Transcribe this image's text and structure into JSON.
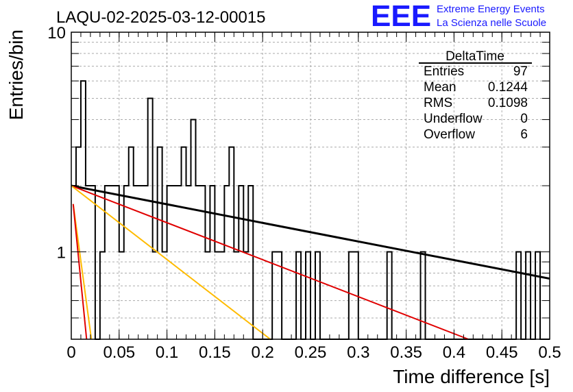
{
  "chart_data": {
    "type": "histogram",
    "title": "LAQU-02-2025-03-12-00015",
    "xlabel": "Time difference [s]",
    "ylabel": "Entries/bin",
    "xlim": [
      0,
      0.5
    ],
    "ylim": [
      0.4,
      10
    ],
    "ylog": true,
    "grid": true,
    "x_ticks": [
      "0",
      "0.05",
      "0.1",
      "0.15",
      "0.2",
      "0.25",
      "0.3",
      "0.35",
      "0.4",
      "0.45",
      "0.5"
    ],
    "y_ticks": [
      "1",
      "10"
    ],
    "bin_width": 0.005,
    "bin_counts": [
      2,
      3,
      6,
      2,
      2,
      0,
      1,
      2,
      2,
      2,
      1,
      2,
      3,
      2,
      2,
      2,
      5,
      1,
      3,
      1,
      2,
      2,
      2,
      3,
      2,
      4,
      2,
      2,
      1,
      2,
      1,
      1,
      2,
      3,
      1,
      2,
      1,
      2,
      0,
      0,
      0,
      0,
      1,
      1,
      0,
      0,
      0,
      1,
      0,
      1,
      0,
      1,
      0,
      0,
      0,
      0,
      0,
      0,
      1,
      1,
      0,
      0,
      0,
      0,
      0,
      0,
      1,
      0,
      0,
      0,
      0,
      0,
      0,
      1,
      0,
      0,
      0,
      0,
      0,
      0,
      0,
      0,
      0,
      0,
      0,
      0,
      0,
      0,
      0,
      0,
      0,
      0,
      0,
      1,
      0,
      1,
      0,
      1,
      0,
      0
    ],
    "fit_lines": [
      {
        "color": "#000000",
        "points": [
          [
            0,
            2.0
          ],
          [
            0.5,
            0.755
          ]
        ]
      },
      {
        "color": "#e00000",
        "points": [
          [
            0,
            2.0
          ],
          [
            0.415,
            0.4
          ]
        ]
      },
      {
        "color": "#ffbb00",
        "points": [
          [
            0,
            2.0
          ],
          [
            0.208,
            0.4
          ]
        ]
      },
      {
        "color": "#ffbb00",
        "points": [
          [
            0.002,
            1.65
          ],
          [
            0.021,
            0.4
          ]
        ]
      },
      {
        "color": "#e00000",
        "points": [
          [
            0.002,
            1.65
          ],
          [
            0.016,
            0.4
          ]
        ]
      }
    ],
    "stats": {
      "title": "DeltaTime",
      "rows": [
        {
          "label": "Entries",
          "value": "97"
        },
        {
          "label": "Mean",
          "value": "0.1244"
        },
        {
          "label": "RMS",
          "value": "0.1098"
        },
        {
          "label": "Underflow",
          "value": "0"
        },
        {
          "label": "Overflow",
          "value": "6"
        }
      ]
    },
    "logo": {
      "text": "EEE",
      "line1": "Extreme Energy Events",
      "line2": "La Scienza nelle Scuole",
      "color": "#1a1aff"
    }
  }
}
